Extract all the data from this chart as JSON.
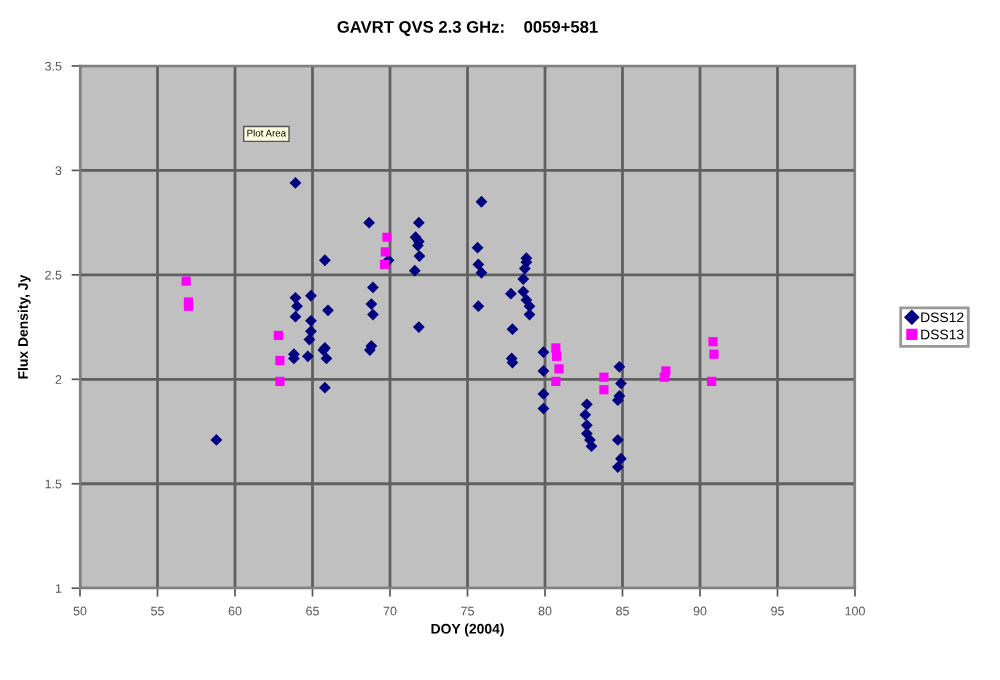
{
  "chart_data": {
    "type": "scatter",
    "title": "GAVRT QVS 2.3 GHz:    0059+581",
    "xlabel": "DOY (2004)",
    "ylabel": "Flux Density, Jy",
    "annotations": [
      "Plot Area"
    ],
    "xlim": [
      50,
      100
    ],
    "xticks": [
      50,
      55,
      60,
      65,
      70,
      75,
      80,
      85,
      90,
      95,
      100
    ],
    "ylim": [
      1,
      3.5
    ],
    "yticks": [
      1,
      1.5,
      2,
      2.5,
      3,
      3.5
    ],
    "grid": true,
    "legend": "right",
    "series": [
      {
        "name": "DSS12",
        "color": "#000080",
        "marker": "diamond",
        "x": [
          63.9,
          68.65,
          65.8,
          69.9,
          68.9,
          63.9,
          64.0,
          64.9,
          68.8,
          68.9,
          66.0,
          63.9,
          64.9,
          64.9,
          64.8,
          65.8,
          65.7,
          68.8,
          68.7,
          63.8,
          63.8,
          64.7,
          65.9,
          65.8,
          58.8,
          71.86,
          71.65,
          71.86,
          71.8,
          71.9,
          71.6,
          71.86,
          75.9,
          75.65,
          75.7,
          75.9,
          75.7,
          78.8,
          78.8,
          78.7,
          78.6,
          77.8,
          78.6,
          78.8,
          79.0,
          79.0,
          77.9,
          77.85,
          77.9,
          79.9,
          79.9,
          79.9,
          79.9,
          82.7,
          82.6,
          82.7,
          82.7,
          82.9,
          83.0,
          84.8,
          84.9,
          84.8,
          84.7,
          84.7,
          84.9,
          84.7
        ],
        "values": [
          2.94,
          2.75,
          2.57,
          2.57,
          2.44,
          2.39,
          2.35,
          2.4,
          2.36,
          2.31,
          2.33,
          2.3,
          2.28,
          2.23,
          2.19,
          2.15,
          2.14,
          2.16,
          2.14,
          2.12,
          2.1,
          2.11,
          2.1,
          1.96,
          1.71,
          2.75,
          2.68,
          2.66,
          2.64,
          2.59,
          2.52,
          2.25,
          2.85,
          2.63,
          2.55,
          2.51,
          2.35,
          2.58,
          2.56,
          2.53,
          2.48,
          2.41,
          2.42,
          2.38,
          2.35,
          2.31,
          2.24,
          2.1,
          2.08,
          2.13,
          2.04,
          1.93,
          1.86,
          1.88,
          1.83,
          1.78,
          1.74,
          1.71,
          1.68,
          2.06,
          1.98,
          1.92,
          1.9,
          1.71,
          1.62,
          1.58
        ]
      },
      {
        "name": "DSS13",
        "color": "#ff00ff",
        "marker": "square",
        "x": [
          56.85,
          57.0,
          57.0,
          62.8,
          62.9,
          62.9,
          69.8,
          69.7,
          69.65,
          80.7,
          80.75,
          80.9,
          80.7,
          83.8,
          83.8,
          87.8,
          87.7,
          90.84,
          90.9,
          90.75
        ],
        "values": [
          2.47,
          2.37,
          2.35,
          2.21,
          2.09,
          1.99,
          2.68,
          2.61,
          2.55,
          2.15,
          2.11,
          2.05,
          1.99,
          2.01,
          1.95,
          2.04,
          2.01,
          2.18,
          2.12,
          1.99
        ]
      }
    ]
  }
}
